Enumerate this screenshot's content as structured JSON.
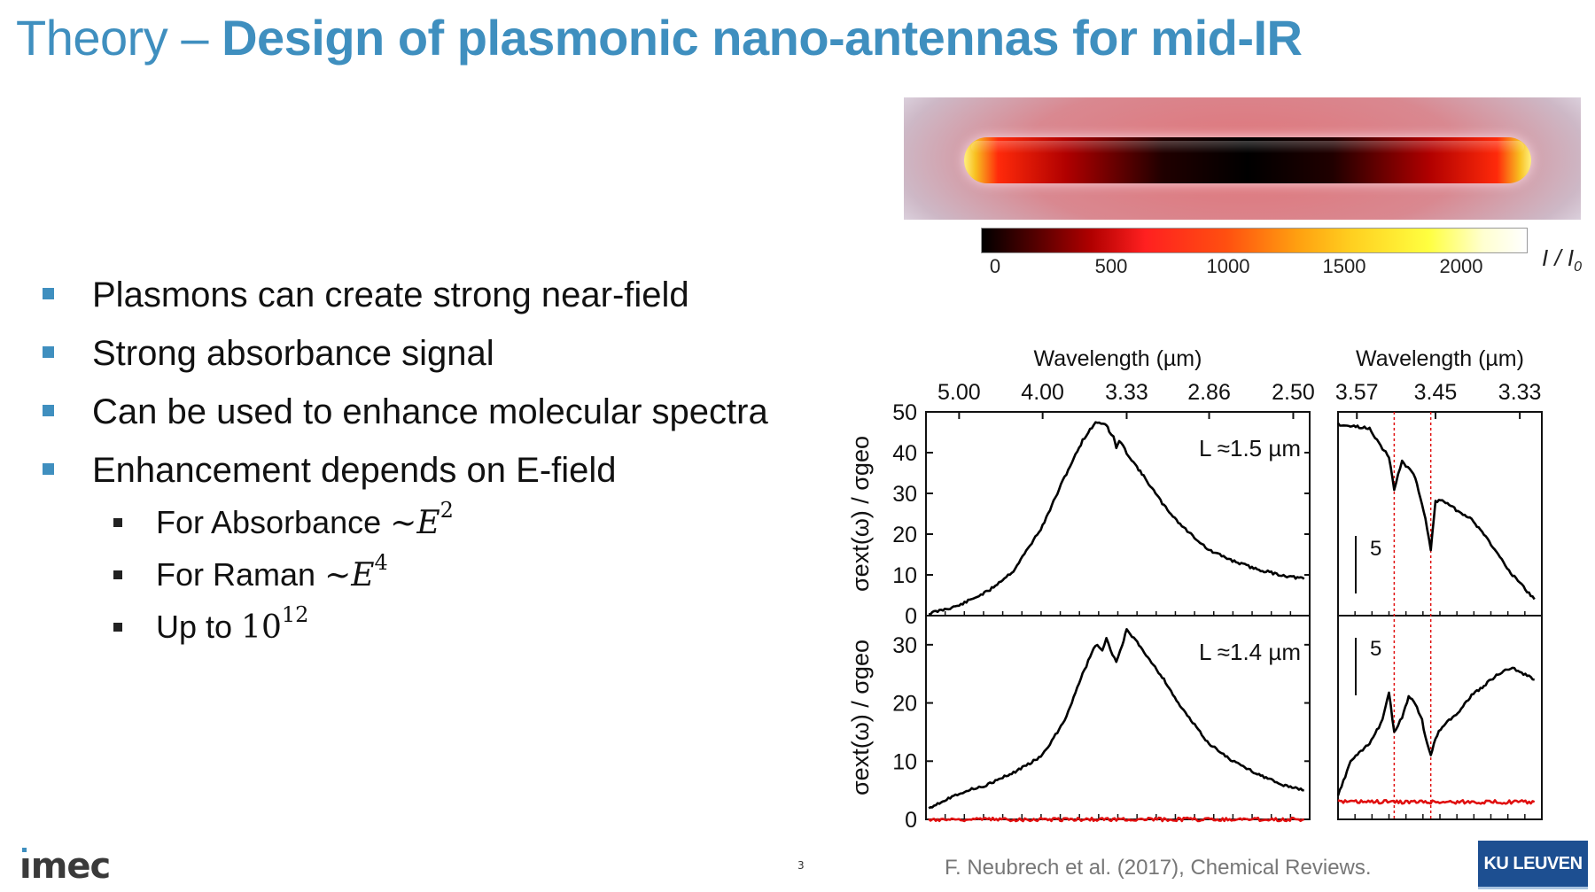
{
  "slide": {
    "title_prefix": "Theory – ",
    "title_bold": "Design of plasmonic nano-antennas for mid-IR",
    "page_number": "3",
    "citation": "F. Neubrech et al. (2017), Chemical Reviews.",
    "logo_left": "ımec",
    "logo_right": "KU LEUVEN"
  },
  "bullets": [
    {
      "text": "Plasmons can create strong near-field"
    },
    {
      "text": "Strong absorbance signal"
    },
    {
      "text": "Can be used to enhance molecular spectra"
    },
    {
      "text": "Enhancement depends on E-field"
    }
  ],
  "subbullets": [
    {
      "text": "For Absorbance ",
      "math": "~E",
      "sup": "2"
    },
    {
      "text": "For Raman ",
      "math": "~E",
      "sup": "4"
    },
    {
      "text": "Up to ",
      "math": "10",
      "sup": "12"
    }
  ],
  "colors": {
    "accent": "#3f8fbf",
    "spectrum_black": "#000000",
    "spectrum_red": "#e01010",
    "marker_line": "#e01010"
  },
  "chart_data": [
    {
      "type": "heatmap",
      "title": "",
      "colorbar_label": "I / I0",
      "colorbar_ticks": [
        "0",
        "500",
        "1000",
        "1500",
        "2000"
      ],
      "colorbar_range": [
        0,
        2300
      ]
    },
    {
      "type": "line",
      "panel": "top-left",
      "annotation": "L ≈1.5 µm",
      "xlabel_top": "Wavelength (µm)",
      "xticks_top": [
        "5.00",
        "4.00",
        "3.33",
        "2.86",
        "2.50"
      ],
      "xticks_top_values": [
        5.0,
        4.0,
        3.33,
        2.86,
        2.5
      ],
      "x_range_um": [
        5.55,
        2.44
      ],
      "ylabel": "σext(ω) / σgeo",
      "yticks": [
        "0",
        "10",
        "20",
        "30",
        "40",
        "50"
      ],
      "ylim": [
        0,
        50
      ],
      "series": [
        {
          "color": "black",
          "x": [
            5.5,
            5.0,
            4.6,
            4.3,
            4.0,
            3.8,
            3.65,
            3.55,
            3.47,
            3.45,
            3.42,
            3.4,
            3.38,
            3.33,
            3.2,
            3.1,
            3.0,
            2.86,
            2.75,
            2.65,
            2.55,
            2.46
          ],
          "y": [
            0.5,
            2.5,
            6,
            11,
            22,
            34,
            43,
            47.5,
            47,
            45,
            44,
            41,
            43,
            40,
            33,
            27,
            22,
            16,
            13.5,
            11.5,
            10,
            9
          ]
        }
      ]
    },
    {
      "type": "line",
      "panel": "top-right",
      "xlabel_top": "Wavelength (µm)",
      "xticks_top": [
        "3.57",
        "3.45",
        "3.33"
      ],
      "xticks_top_values": [
        3.57,
        3.45,
        3.33
      ],
      "x_range_um": [
        3.6,
        3.3
      ],
      "scale_bar": "5",
      "marker_lines_um": [
        3.512,
        3.457
      ],
      "series": [
        {
          "color": "black",
          "x": [
            3.6,
            3.58,
            3.55,
            3.53,
            3.52,
            3.512,
            3.5,
            3.48,
            3.465,
            3.457,
            3.45,
            3.44,
            3.42,
            3.4,
            3.38,
            3.36,
            3.34,
            3.31
          ],
          "y": [
            47,
            46.5,
            46,
            41,
            39,
            31,
            38,
            34,
            24,
            16,
            28,
            28.5,
            26,
            24,
            20,
            15,
            10,
            4
          ]
        }
      ]
    },
    {
      "type": "line",
      "panel": "bottom-left",
      "annotation": "L ≈1.4 µm",
      "ylabel": "σext(ω) / σgeo",
      "yticks": [
        "0",
        "10",
        "20",
        "30"
      ],
      "ylim": [
        0,
        35
      ],
      "series": [
        {
          "color": "black",
          "x": [
            5.5,
            5.0,
            4.6,
            4.3,
            4.0,
            3.8,
            3.65,
            3.55,
            3.5,
            3.47,
            3.44,
            3.4,
            3.36,
            3.33,
            3.25,
            3.1,
            3.0,
            2.86,
            2.75,
            2.65,
            2.55,
            2.46
          ],
          "y": [
            2,
            4.5,
            6,
            8,
            11,
            17,
            25,
            30,
            29,
            31,
            29,
            27,
            30,
            32.5,
            30,
            24,
            19,
            13,
            10,
            8,
            6,
            5
          ]
        },
        {
          "color": "red",
          "x": [
            5.5,
            4.5,
            4.0,
            3.5,
            3.0,
            2.46
          ],
          "y": [
            0,
            0,
            0,
            0,
            0,
            0
          ]
        }
      ]
    },
    {
      "type": "line",
      "panel": "bottom-right",
      "scale_bar": "5",
      "marker_lines_um": [
        3.512,
        3.457
      ],
      "series": [
        {
          "color": "black",
          "x": [
            3.6,
            3.58,
            3.55,
            3.53,
            3.52,
            3.512,
            3.5,
            3.49,
            3.48,
            3.47,
            3.465,
            3.457,
            3.45,
            3.44,
            3.42,
            3.4,
            3.38,
            3.36,
            3.34,
            3.31
          ],
          "y": [
            4,
            10,
            13,
            17,
            22,
            15,
            17.5,
            21,
            20,
            17,
            14,
            11,
            14,
            16,
            18,
            21,
            23,
            25,
            26,
            24
          ]
        },
        {
          "color": "red",
          "x": [
            3.6,
            3.5,
            3.4,
            3.31
          ],
          "y": [
            3,
            3,
            3,
            3
          ]
        }
      ]
    }
  ]
}
